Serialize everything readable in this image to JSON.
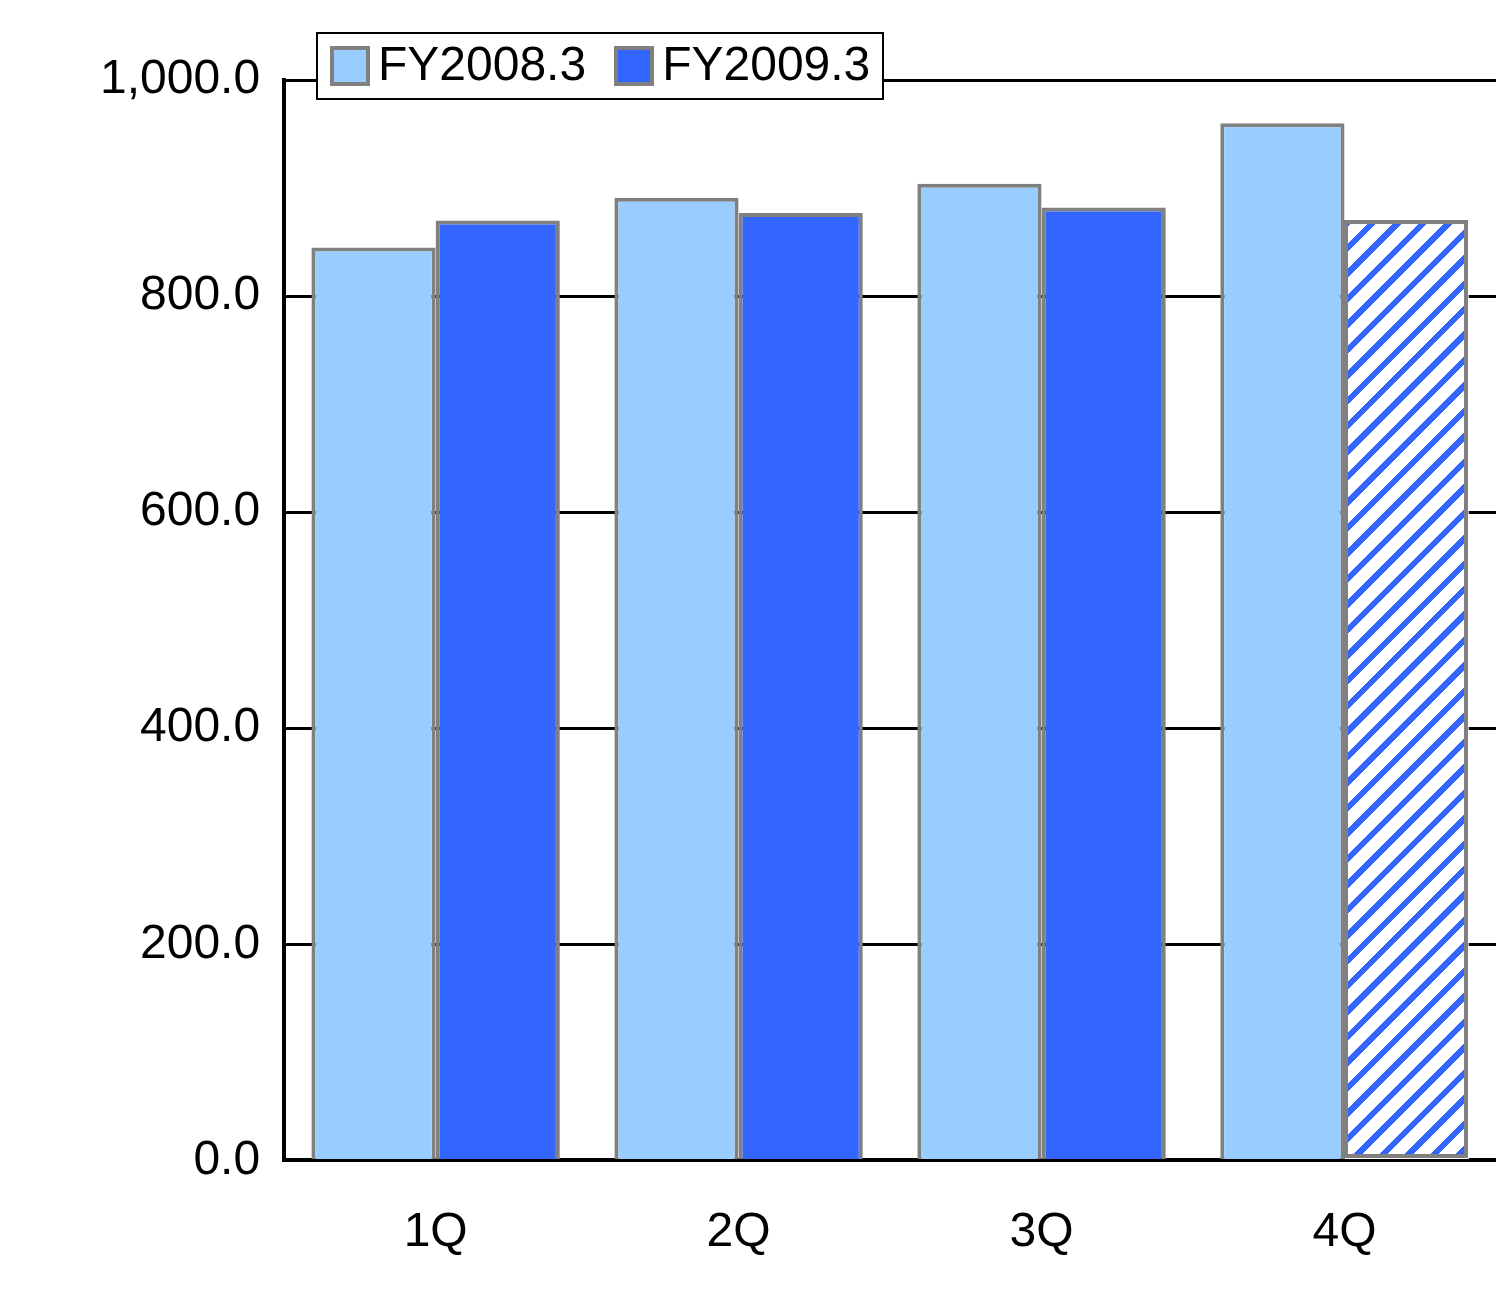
{
  "chart_data": {
    "type": "bar",
    "categories": [
      "1Q",
      "2Q",
      "3Q",
      "4Q"
    ],
    "series": [
      {
        "name": "FY2008.3",
        "color": "#99ccff",
        "values": [
          845,
          891,
          904,
          960
        ]
      },
      {
        "name": "FY2009.3",
        "color": "#3366ff",
        "colors": [
          "#3366ff",
          "#3366ff",
          "#3366ff",
          "#ffffff"
        ],
        "values": [
          870,
          877,
          882,
          870
        ]
      }
    ],
    "ylim": [
      0,
      1000
    ],
    "yticks": [
      {
        "value": 0,
        "label": "0.0"
      },
      {
        "value": 200,
        "label": "200.0"
      },
      {
        "value": 400,
        "label": "400.0"
      },
      {
        "value": 600,
        "label": "600.0"
      },
      {
        "value": 800,
        "label": "800.0"
      },
      {
        "value": 1000,
        "label": "1,000.0"
      }
    ],
    "grid": "y",
    "legend": "top left"
  }
}
